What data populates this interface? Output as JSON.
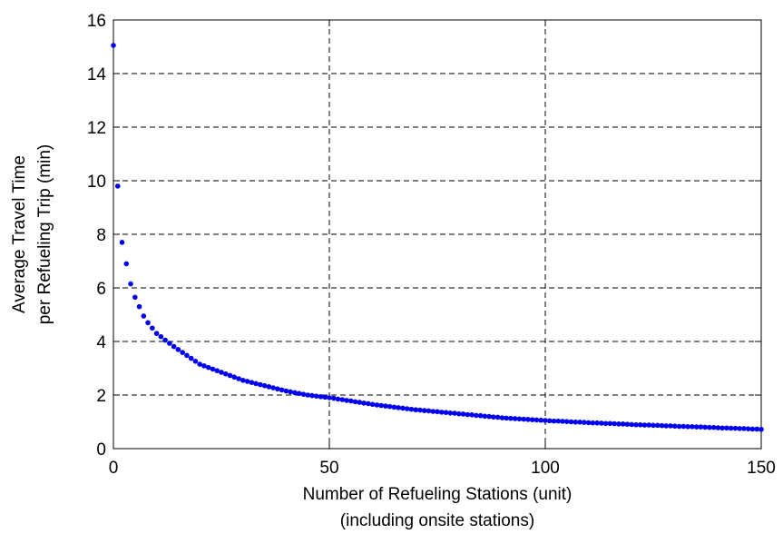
{
  "chart_data": {
    "type": "scatter",
    "xlabel": [
      "Number of Refueling Stations (unit)",
      "(including onsite stations)"
    ],
    "ylabel": [
      "Average Travel Time",
      "per Refueling Trip (min)"
    ],
    "color": "#0000ee",
    "grid": true,
    "xlim": [
      0,
      150
    ],
    "xticks": [
      0,
      50,
      100,
      150
    ],
    "ylim": [
      0,
      16
    ],
    "yticks": [
      0,
      2,
      4,
      6,
      8,
      10,
      12,
      14,
      16
    ],
    "x": [
      0,
      1,
      2,
      3,
      4,
      5,
      6,
      7,
      8,
      9,
      10,
      11,
      12,
      13,
      14,
      15,
      16,
      17,
      18,
      19,
      20,
      21,
      22,
      23,
      24,
      25,
      26,
      27,
      28,
      29,
      30,
      31,
      32,
      33,
      34,
      35,
      36,
      37,
      38,
      39,
      40,
      41,
      42,
      43,
      44,
      45,
      46,
      47,
      48,
      49,
      50,
      51,
      52,
      53,
      54,
      55,
      56,
      57,
      58,
      59,
      60,
      61,
      62,
      63,
      64,
      65,
      66,
      67,
      68,
      69,
      70,
      71,
      72,
      73,
      74,
      75,
      76,
      77,
      78,
      79,
      80,
      81,
      82,
      83,
      84,
      85,
      86,
      87,
      88,
      89,
      90,
      91,
      92,
      93,
      94,
      95,
      96,
      97,
      98,
      99,
      100,
      101,
      102,
      103,
      104,
      105,
      106,
      107,
      108,
      109,
      110,
      111,
      112,
      113,
      114,
      115,
      116,
      117,
      118,
      119,
      120,
      121,
      122,
      123,
      124,
      125,
      126,
      127,
      128,
      129,
      130,
      131,
      132,
      133,
      134,
      135,
      136,
      137,
      138,
      139,
      140,
      141,
      142,
      143,
      144,
      145,
      146,
      147,
      148,
      149,
      150
    ],
    "values": [
      15.05,
      9.8,
      7.7,
      6.9,
      6.15,
      5.65,
      5.3,
      4.95,
      4.7,
      4.5,
      4.3,
      4.18,
      4.05,
      3.93,
      3.81,
      3.7,
      3.59,
      3.48,
      3.37,
      3.26,
      3.15,
      3.09,
      3.03,
      2.97,
      2.91,
      2.85,
      2.79,
      2.73,
      2.67,
      2.61,
      2.55,
      2.51,
      2.47,
      2.43,
      2.39,
      2.35,
      2.31,
      2.27,
      2.23,
      2.19,
      2.15,
      2.12,
      2.09,
      2.06,
      2.03,
      2.0,
      1.98,
      1.96,
      1.94,
      1.92,
      1.9,
      1.88,
      1.85,
      1.83,
      1.8,
      1.78,
      1.75,
      1.73,
      1.7,
      1.68,
      1.65,
      1.63,
      1.61,
      1.59,
      1.57,
      1.55,
      1.53,
      1.51,
      1.49,
      1.47,
      1.45,
      1.44,
      1.42,
      1.41,
      1.39,
      1.38,
      1.36,
      1.35,
      1.33,
      1.32,
      1.3,
      1.29,
      1.27,
      1.26,
      1.24,
      1.23,
      1.21,
      1.2,
      1.18,
      1.17,
      1.15,
      1.14,
      1.13,
      1.12,
      1.11,
      1.1,
      1.09,
      1.08,
      1.07,
      1.06,
      1.05,
      1.04,
      1.03,
      1.03,
      1.02,
      1.01,
      1.0,
      0.99,
      0.99,
      0.98,
      0.97,
      0.96,
      0.96,
      0.95,
      0.94,
      0.94,
      0.93,
      0.92,
      0.92,
      0.91,
      0.9,
      0.89,
      0.89,
      0.88,
      0.88,
      0.87,
      0.87,
      0.86,
      0.85,
      0.85,
      0.84,
      0.83,
      0.83,
      0.82,
      0.82,
      0.81,
      0.81,
      0.8,
      0.79,
      0.79,
      0.78,
      0.77,
      0.77,
      0.76,
      0.76,
      0.75,
      0.75,
      0.74,
      0.73,
      0.73,
      0.72
    ]
  }
}
